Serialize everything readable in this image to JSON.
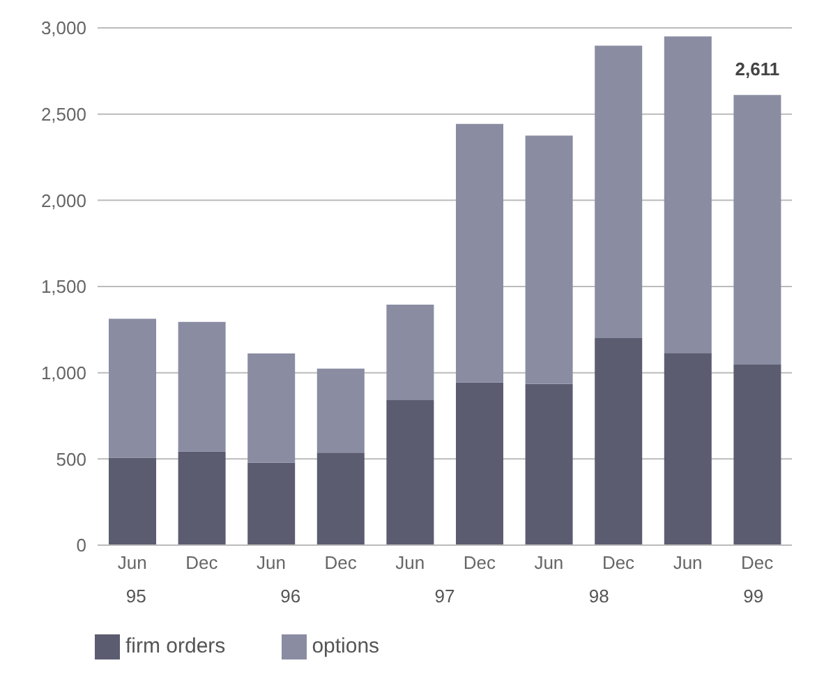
{
  "chart_data": {
    "type": "bar",
    "stacked": true,
    "categories": [
      "Jun",
      "Dec",
      "Jun",
      "Dec",
      "Jun",
      "Dec",
      "Jun",
      "Dec",
      "Jun",
      "Dec"
    ],
    "series": [
      {
        "name": "firm orders",
        "color": "#5b5c70",
        "values": [
          507,
          543,
          478,
          537,
          841,
          944,
          935,
          1201,
          1115,
          1047
        ]
      },
      {
        "name": "options",
        "color": "#8a8ca2",
        "values": [
          806,
          752,
          634,
          487,
          554,
          1499,
          1440,
          1696,
          1835,
          1564
        ]
      }
    ],
    "totals": [
      null,
      null,
      null,
      null,
      null,
      null,
      null,
      null,
      null,
      "2,611"
    ],
    "annotations": [
      "95",
      "96",
      "97",
      "98",
      "99"
    ],
    "ylim": [
      0,
      3000
    ],
    "yticks": [
      {
        "value": 0,
        "label": "0"
      },
      {
        "value": 500,
        "label": "500"
      },
      {
        "value": 1000,
        "label": "1,000"
      },
      {
        "value": 1500,
        "label": "1,500"
      },
      {
        "value": 2000,
        "label": "2,000"
      },
      {
        "value": 2500,
        "label": "2,500"
      },
      {
        "value": 3000,
        "label": "3,000"
      }
    ],
    "grid": "y",
    "legend": "bottom left"
  }
}
